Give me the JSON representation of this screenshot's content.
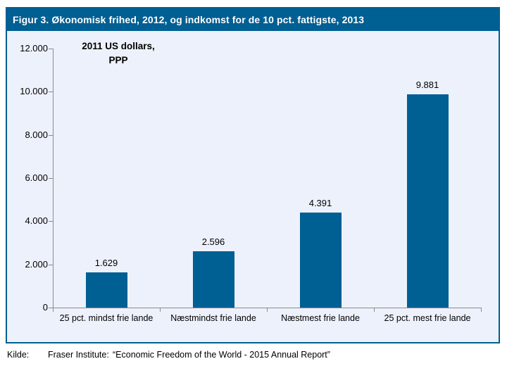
{
  "chart_data": {
    "type": "bar",
    "title": "Figur 3. Økonomisk frihed, 2012, og indkomst for de 10 pct. fattigste, 2013",
    "annotation_lines": [
      "2011 US dollars,",
      "PPP"
    ],
    "categories": [
      "25 pct. mindst frie lande",
      "Næstmindst frie lande",
      "Næstmest frie lande",
      "25 pct. mest frie lande"
    ],
    "values": [
      1629,
      2596,
      4391,
      9881
    ],
    "value_labels": [
      "1.629",
      "2.596",
      "4.391",
      "9.881"
    ],
    "ylim": [
      0,
      12000
    ],
    "yticks": [
      0,
      2000,
      4000,
      6000,
      8000,
      10000,
      12000
    ],
    "ytick_labels": [
      "0",
      "2.000",
      "4.000",
      "6.000",
      "8.000",
      "10.000",
      "12.000"
    ],
    "grid": false,
    "legend_position": "none",
    "colors": {
      "bar": "#005F93",
      "header_bg": "#005F93",
      "border": "#005F93",
      "plot_bg": "#EDF1FB",
      "axis": "#8C8C8C",
      "title_text": "#FFFFFF",
      "label_text": "#000000"
    }
  },
  "source": {
    "label": "Kilde:",
    "institution": "Fraser Institute:",
    "report": "“Economic Freedom of the World - 2015 Annual Report”"
  }
}
